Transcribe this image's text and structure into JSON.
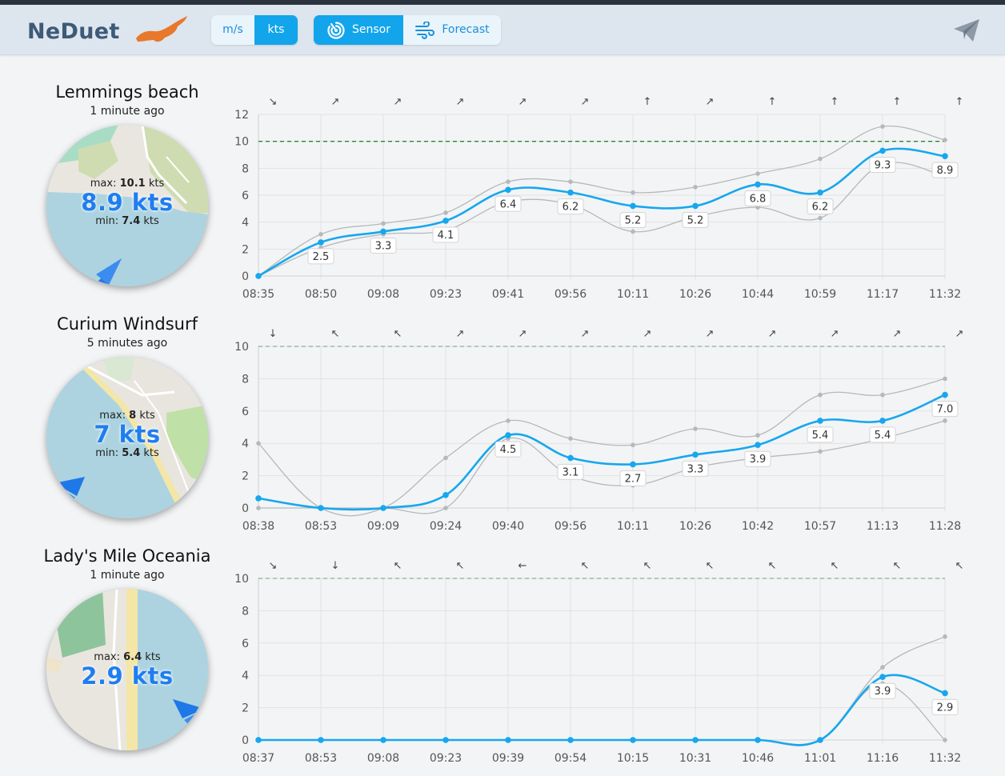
{
  "app": {
    "brand": "NeDuet",
    "units": [
      {
        "label": "m/s",
        "active": false
      },
      {
        "label": "kts",
        "active": true
      }
    ],
    "modes": [
      {
        "label": "Sensor",
        "icon": "sensor-radar-icon",
        "active": true
      },
      {
        "label": "Forecast",
        "icon": "wind-icon",
        "active": false
      }
    ],
    "share_icon": "paper-plane-icon",
    "colors": {
      "accent": "#12a5ec",
      "series": "#17a7ee",
      "envelope": "#b5b9bc",
      "brand": "#3d5a78",
      "flag": "#e8782a",
      "speed_text": "#1f7ef0"
    }
  },
  "stations": [
    {
      "name": "Lemmings beach",
      "updated": "1 minute ago",
      "current": {
        "max_label": "max:",
        "max_value": "10.1",
        "unit": "kts",
        "speed": "8.9 kts",
        "min_label": "min:",
        "min_value": "7.4"
      },
      "direction_arrow": "south-west",
      "chart_data": {
        "type": "line",
        "x": [
          "08:35",
          "08:50",
          "09:08",
          "09:23",
          "09:41",
          "09:56",
          "10:11",
          "10:26",
          "10:44",
          "10:59",
          "11:17",
          "11:32"
        ],
        "series": [
          {
            "values": [
              0,
              2.5,
              3.3,
              4.1,
              6.4,
              6.2,
              5.2,
              5.2,
              6.8,
              6.2,
              9.3,
              8.9
            ]
          },
          {
            "values": [
              0,
              3.1,
              3.9,
              4.7,
              7.0,
              7.0,
              6.2,
              6.6,
              7.6,
              8.7,
              11.1,
              10.1
            ]
          },
          {
            "values": [
              0,
              2.1,
              3.1,
              3.4,
              5.5,
              5.3,
              3.3,
              4.4,
              5.1,
              4.3,
              8.3,
              7.4
            ]
          }
        ],
        "data_labels": [
          "2.5",
          "3.3",
          "4.1",
          "6.4",
          "6.2",
          "5.2",
          "5.2",
          "6.8",
          "6.2",
          "9.3",
          "8.9"
        ],
        "direction_arrows": [
          "↘",
          "↗",
          "↗",
          "↗",
          "↗",
          "↗",
          "↑",
          "↗",
          "↑",
          "↑",
          "↑",
          "↑"
        ],
        "reference_line": 10,
        "ylim": [
          0,
          12
        ],
        "yticks": [
          "0",
          "2",
          "4",
          "6",
          "8",
          "10",
          "12"
        ],
        "grid": true
      }
    },
    {
      "name": "Curium Windsurf",
      "updated": "5 minutes ago",
      "current": {
        "max_label": "max:",
        "max_value": "8",
        "unit": "kts",
        "speed": "7 kts",
        "min_label": "min:",
        "min_value": "5.4"
      },
      "direction_arrow": "north-east",
      "chart_data": {
        "type": "line",
        "x": [
          "08:38",
          "08:53",
          "09:09",
          "09:24",
          "09:40",
          "09:56",
          "10:11",
          "10:26",
          "10:42",
          "10:57",
          "11:13",
          "11:28"
        ],
        "series": [
          {
            "values": [
              0.6,
              0,
              0,
              0.8,
              4.5,
              3.1,
              2.7,
              3.3,
              3.9,
              5.4,
              5.4,
              7.0
            ]
          },
          {
            "values": [
              4.0,
              0,
              0,
              3.1,
              5.4,
              4.3,
              3.9,
              4.9,
              4.5,
              7.0,
              7.0,
              8.0
            ]
          },
          {
            "values": [
              0,
              0,
              0,
              0,
              4.3,
              2.0,
              1.4,
              2.5,
              3.1,
              3.5,
              4.3,
              5.4
            ]
          }
        ],
        "data_labels": [
          "4.5",
          "3.1",
          "2.7",
          "3.3",
          "3.9",
          "5.4",
          "5.4",
          "7.0"
        ],
        "direction_arrows": [
          "↓",
          "↖",
          "↖",
          "↗",
          "↗",
          "↗",
          "↗",
          "↗",
          "↗",
          "↗",
          "↗",
          "↗"
        ],
        "reference_line": 10,
        "ylim": [
          0,
          10
        ],
        "yticks": [
          "0",
          "2",
          "4",
          "6",
          "8",
          "10"
        ],
        "grid": true
      }
    },
    {
      "name": "Lady's Mile Oceania",
      "updated": "1 minute ago",
      "current": {
        "max_label": "max:",
        "max_value": "6.4",
        "unit": "kts",
        "speed": "2.9 kts"
      },
      "direction_arrow": "north-west",
      "chart_data": {
        "type": "line",
        "x": [
          "08:37",
          "08:53",
          "09:08",
          "09:23",
          "09:39",
          "09:54",
          "10:15",
          "10:31",
          "10:46",
          "11:01",
          "11:16",
          "11:32"
        ],
        "series": [
          {
            "values": [
              0,
              0,
              0,
              0,
              0,
              0,
              0,
              0,
              0,
              0,
              3.9,
              2.9
            ]
          },
          {
            "values": [
              0,
              0,
              0,
              0,
              0,
              0,
              0,
              0,
              0,
              0,
              4.5,
              6.4
            ]
          },
          {
            "values": [
              0,
              0,
              0,
              0,
              0,
              0,
              0,
              0,
              0,
              0,
              3.5,
              0
            ]
          }
        ],
        "data_labels": [
          "3.9",
          "2.9"
        ],
        "direction_arrows": [
          "↘",
          "↓",
          "↖",
          "↖",
          "←",
          "↖",
          "↖",
          "↖",
          "↖",
          "↖",
          "↖",
          "↖"
        ],
        "reference_line": 10,
        "ylim": [
          0,
          10
        ],
        "yticks": [
          "0",
          "2",
          "4",
          "6",
          "8",
          "10"
        ],
        "grid": true
      }
    }
  ]
}
